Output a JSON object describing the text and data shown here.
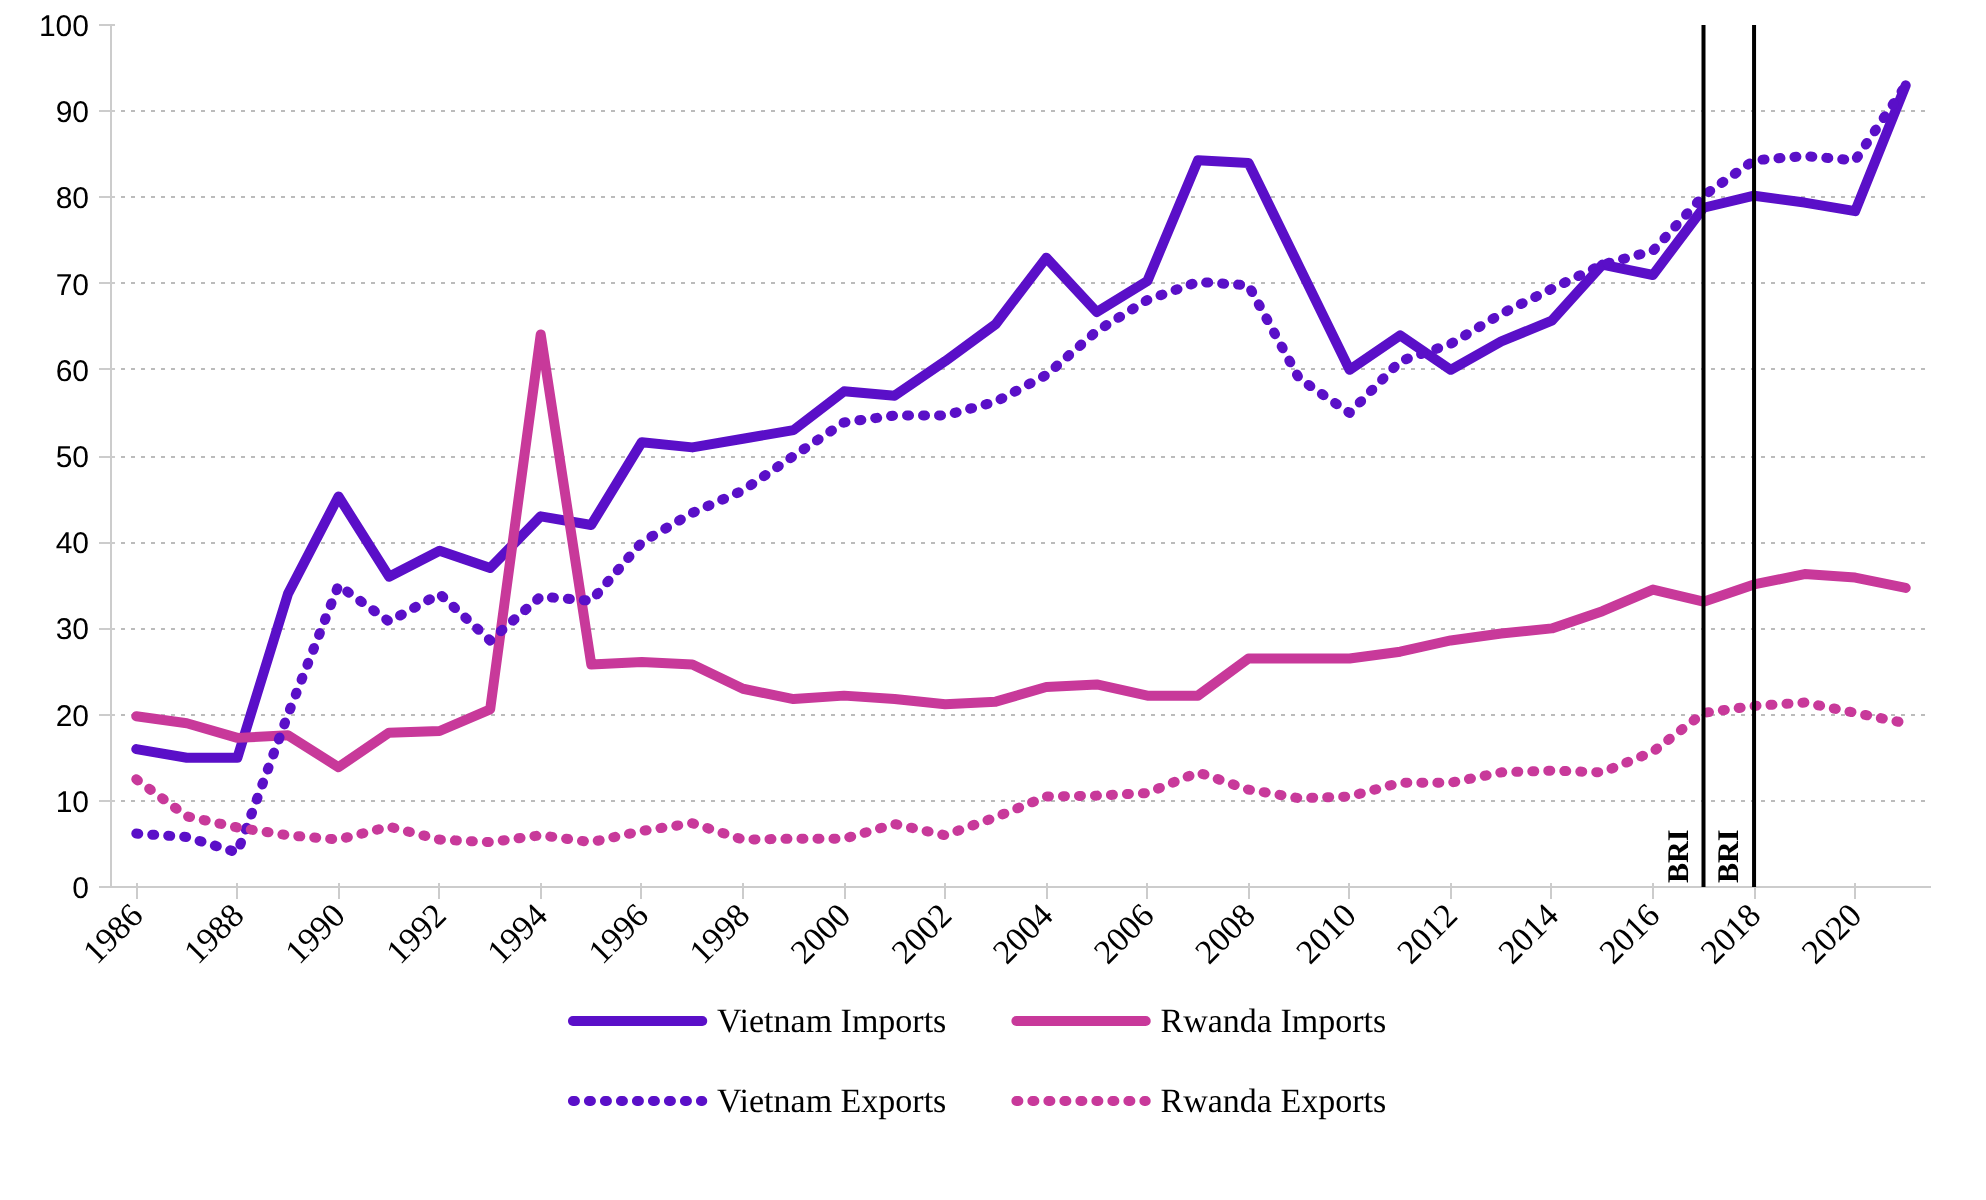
{
  "chart_data": {
    "type": "line",
    "x": [
      1986,
      1987,
      1988,
      1989,
      1990,
      1991,
      1992,
      1993,
      1994,
      1995,
      1996,
      1997,
      1998,
      1999,
      2000,
      2001,
      2002,
      2003,
      2004,
      2005,
      2006,
      2007,
      2008,
      2009,
      2010,
      2011,
      2012,
      2013,
      2014,
      2015,
      2016,
      2017,
      2018,
      2019,
      2020,
      2021
    ],
    "xlim": [
      1985.5,
      2021.5
    ],
    "xticks": [
      1986,
      1988,
      1990,
      1992,
      1994,
      1996,
      1998,
      2000,
      2002,
      2004,
      2006,
      2008,
      2010,
      2012,
      2014,
      2016,
      2018,
      2020
    ],
    "ylim": [
      0,
      100
    ],
    "yticks": [
      0,
      10,
      20,
      30,
      40,
      50,
      60,
      70,
      80,
      90,
      100
    ],
    "grid": "y",
    "legend": "bottom",
    "series": [
      {
        "name": "Vietnam Imports",
        "color": "#5a0fc8",
        "line_style": "solid",
        "values": [
          16,
          15,
          15,
          34,
          45.3,
          36,
          39,
          37,
          43,
          42,
          51.6,
          51,
          52,
          53,
          57.5,
          57,
          61,
          65.3,
          73,
          66.7,
          70.3,
          84.3,
          84,
          72,
          60,
          64,
          60,
          63.3,
          65.7,
          72.2,
          71,
          78.8,
          80.2,
          79.4,
          78.4,
          93
        ]
      },
      {
        "name": "Rwanda Imports",
        "color": "#c8399a",
        "line_style": "solid",
        "values": [
          19.8,
          19,
          17.3,
          17.6,
          13.9,
          17.9,
          18.1,
          20.6,
          64.1,
          25.8,
          26.1,
          25.8,
          23,
          21.8,
          22.2,
          21.8,
          21.2,
          21.5,
          23.2,
          23.5,
          22.2,
          22.2,
          26.5,
          26.5,
          26.5,
          27.3,
          28.6,
          29.4,
          30,
          32,
          34.5,
          33.1,
          35.1,
          36.3,
          35.9,
          34.7
        ]
      },
      {
        "name": "Vietnam Exports",
        "color": "#5a0fc8",
        "line_style": "dotted",
        "values": [
          6.2,
          5.8,
          4,
          20,
          35,
          30.8,
          34,
          28.6,
          33.7,
          33.2,
          40,
          43.4,
          46,
          50,
          53.9,
          54.7,
          54.7,
          56.3,
          59.4,
          64.5,
          68.1,
          70.2,
          69.8,
          59,
          55,
          61,
          63,
          66.5,
          69.4,
          72.2,
          73.8,
          80.2,
          84.3,
          84.8,
          84.3,
          93
        ]
      },
      {
        "name": "Rwanda Exports",
        "color": "#c8399a",
        "line_style": "dotted",
        "values": [
          12.5,
          8.2,
          6.9,
          6,
          5.5,
          7,
          5.5,
          5.2,
          6,
          5.2,
          6.5,
          7.4,
          5.5,
          5.6,
          5.6,
          7.3,
          6,
          8.1,
          10.5,
          10.6,
          10.9,
          13.3,
          11.3,
          10.3,
          10.5,
          12.1,
          12.1,
          13.3,
          13.5,
          13.3,
          15.7,
          20.2,
          21,
          21.4,
          20.2,
          19
        ]
      }
    ],
    "ref_lines": [
      {
        "axis": "x",
        "value": 2017,
        "label": "BRI",
        "color": "#000000"
      },
      {
        "axis": "x",
        "value": 2018,
        "label": "BRI",
        "color": "#000000"
      }
    ]
  }
}
